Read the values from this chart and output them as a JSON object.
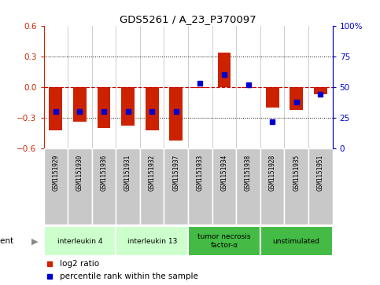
{
  "title": "GDS5261 / A_23_P370097",
  "samples": [
    "GSM1151929",
    "GSM1151930",
    "GSM1151936",
    "GSM1151931",
    "GSM1151932",
    "GSM1151937",
    "GSM1151933",
    "GSM1151934",
    "GSM1151938",
    "GSM1151928",
    "GSM1151935",
    "GSM1151951"
  ],
  "log2_ratio": [
    -0.42,
    -0.34,
    -0.4,
    -0.38,
    -0.42,
    -0.52,
    -0.01,
    0.34,
    -0.01,
    -0.2,
    -0.22,
    -0.07
  ],
  "percentile_rank": [
    30,
    30,
    30,
    30,
    30,
    30,
    53,
    60,
    52,
    22,
    38,
    44
  ],
  "groups": [
    {
      "label": "interleukin 4",
      "start": 0,
      "end": 2,
      "color": "#ccffcc"
    },
    {
      "label": "interleukin 13",
      "start": 3,
      "end": 5,
      "color": "#ccffcc"
    },
    {
      "label": "tumor necrosis\nfactor-α",
      "start": 6,
      "end": 8,
      "color": "#44bb44"
    },
    {
      "label": "unstimulated",
      "start": 9,
      "end": 11,
      "color": "#44bb44"
    }
  ],
  "ylim": [
    -0.6,
    0.6
  ],
  "yticks_left": [
    -0.6,
    -0.3,
    0.0,
    0.3,
    0.6
  ],
  "yticks_right": [
    0,
    25,
    50,
    75,
    100
  ],
  "right_ylabels": [
    "0",
    "25",
    "50",
    "75",
    "100%"
  ],
  "bar_color": "#cc2200",
  "dot_color": "#0000cc",
  "zero_line_color": "#cc0000",
  "bg_color": "#ffffff",
  "sample_box_color": "#c8c8c8",
  "agent_label": "agent",
  "legend_ratio_label": "log2 ratio",
  "legend_pct_label": "percentile rank within the sample"
}
